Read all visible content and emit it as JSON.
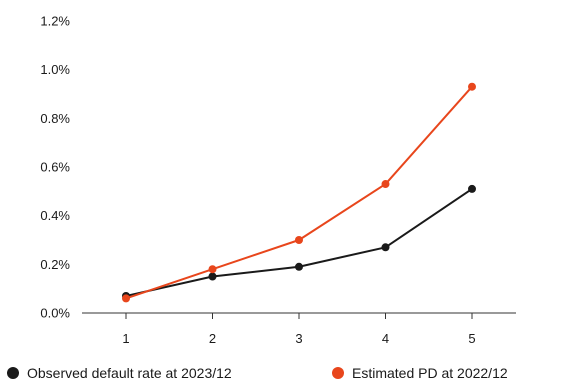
{
  "chart_data": {
    "type": "line",
    "title": "",
    "xlabel": "",
    "ylabel": "",
    "x": [
      1,
      2,
      3,
      4,
      5
    ],
    "x_tick_labels": [
      "1",
      "2",
      "3",
      "4",
      "5"
    ],
    "y_tick_labels": [
      "0.0%",
      "0.2%",
      "0.4%",
      "0.6%",
      "0.8%",
      "1.0%",
      "1.2%"
    ],
    "y_ticks": [
      0,
      0.2,
      0.4,
      0.6,
      0.8,
      1.0,
      1.2
    ],
    "ylim": [
      0,
      1.2
    ],
    "y_unit": "%",
    "grid": false,
    "legend_position": "bottom",
    "series": [
      {
        "name": "Observed default rate at 2023/12",
        "values": [
          0.07,
          0.15,
          0.19,
          0.27,
          0.51
        ],
        "color": "#1a1a1a"
      },
      {
        "name": "Estimated PD at 2022/12",
        "values": [
          0.06,
          0.18,
          0.3,
          0.53,
          0.93
        ],
        "color": "#e8461c"
      }
    ]
  }
}
